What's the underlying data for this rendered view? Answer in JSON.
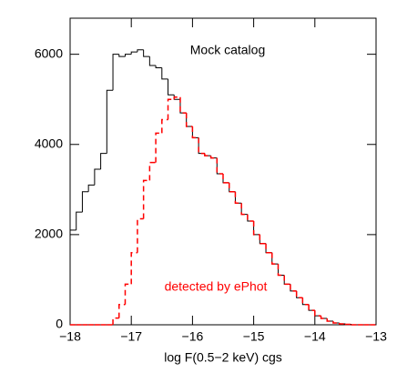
{
  "chart_data": {
    "type": "histogram",
    "xlabel": "log F(0.5−2 keV) cgs",
    "bins": [
      -18,
      -17.9,
      -17.8,
      -17.7,
      -17.6,
      -17.5,
      -17.4,
      -17.3,
      -17.2,
      -17.1,
      -17,
      -16.9,
      -16.8,
      -16.7,
      -16.6,
      -16.5,
      -16.4,
      -16.3,
      -16.2,
      -16.1,
      -16,
      -15.9,
      -15.8,
      -15.7,
      -15.6,
      -15.5,
      -15.4,
      -15.3,
      -15.2,
      -15.1,
      -15,
      -14.9,
      -14.8,
      -14.7,
      -14.6,
      -14.5,
      -14.4,
      -14.3,
      -14.2,
      -14.1,
      -14,
      -13.9,
      -13.8,
      -13.7,
      -13.6,
      -13.5,
      -13.4,
      -13.3,
      -13.2,
      -13.1,
      -13
    ],
    "series": [
      {
        "name": "Mock catalog",
        "color": "#000000",
        "dashed": false,
        "values": [
          2100,
          2500,
          2950,
          3100,
          3450,
          3800,
          5200,
          6000,
          5950,
          6000,
          6050,
          6100,
          5950,
          5750,
          5700,
          5450,
          5100,
          5000,
          4700,
          4400,
          4150,
          3800,
          3750,
          3700,
          3350,
          3150,
          2950,
          2700,
          2450,
          2300,
          2000,
          1800,
          1600,
          1350,
          1100,
          900,
          750,
          600,
          450,
          320,
          200,
          140,
          80,
          40,
          20,
          10,
          0,
          0,
          0,
          0
        ]
      },
      {
        "name": "detected by ePhot",
        "color": "#ff0000",
        "dashed": true,
        "values": [
          0,
          0,
          0,
          0,
          0,
          0,
          0,
          150,
          450,
          900,
          1600,
          2350,
          3200,
          3600,
          4250,
          4550,
          5000,
          5050,
          4700,
          4400,
          4150,
          3800,
          3750,
          3700,
          3350,
          3150,
          2950,
          2700,
          2450,
          2300,
          2000,
          1800,
          1600,
          1350,
          1100,
          900,
          750,
          600,
          450,
          320,
          200,
          140,
          80,
          40,
          20,
          10,
          0,
          0,
          0,
          0
        ]
      }
    ],
    "xlim": [
      -18,
      -13
    ],
    "ylim": [
      0,
      6800
    ],
    "xticks": [
      {
        "value": -18,
        "label": "−18"
      },
      {
        "value": -17,
        "label": "−17"
      },
      {
        "value": -16,
        "label": "−16"
      },
      {
        "value": -15,
        "label": "−15"
      },
      {
        "value": -14,
        "label": "−14"
      },
      {
        "value": -13,
        "label": "−13"
      }
    ],
    "yticks": [
      0,
      2000,
      4000,
      6000
    ]
  }
}
